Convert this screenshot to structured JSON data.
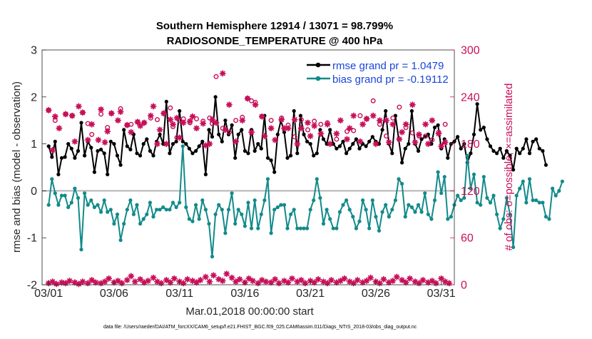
{
  "chart_data": {
    "type": "line",
    "title": "Southern Hemisphere 12914 / 13071 = 98.799%",
    "subtitle": "RADIOSONDE_TEMPERATURE @ 400 hPa",
    "xlabel": "Mar.01,2018 00:00:00 start",
    "ylabel": "rmse and bias (model - observation)",
    "ylabel_right": "# of obs: o=possible; ×=assimilated",
    "footnote": "data file: /Users/raeder/DAI/ATM_forcXX/CAM6_setup/f.e21.FHIST_BGC.f09_025.CAM6assim.011/Diags_NTrS_2018-03/obs_diag_output.nc",
    "xlim": [
      0.5,
      32
    ],
    "ylim": [
      -2,
      3
    ],
    "ylim_right": [
      0,
      300
    ],
    "x_ticks": [
      1,
      6,
      11,
      16,
      21,
      26,
      31
    ],
    "x_tick_labels": [
      "03/01",
      "03/06",
      "03/11",
      "03/16",
      "03/21",
      "03/26",
      "03/31"
    ],
    "y_ticks": [
      -2,
      -1,
      0,
      1,
      2,
      3
    ],
    "y_tick_labels": [
      "-2",
      "-1",
      "0",
      "1",
      "2",
      "3"
    ],
    "y_right_ticks": [
      0,
      60,
      120,
      180,
      240,
      300
    ],
    "y_right_tick_labels": [
      "0",
      "60",
      "120",
      "180",
      "240",
      "300"
    ],
    "zero_line": 0,
    "legend": {
      "position": "top-right",
      "entries": [
        "rmse grand pr = 1.0479",
        "bias grand pr = -0.19112"
      ]
    },
    "colors": {
      "rmse": "#000000",
      "bias": "#138a8a",
      "obs": "#c8105a",
      "legend_text": "#1a46d8",
      "zero_line": "#b4b4b4"
    },
    "series": [
      {
        "name": "rmse",
        "axis": "left",
        "start": 1,
        "step": 0.25,
        "values": [
          0.95,
          0.72,
          1.05,
          0.35,
          0.7,
          0.72,
          1.0,
          0.9,
          0.7,
          0.85,
          1.45,
          0.75,
          1.05,
          0.92,
          0.4,
          0.85,
          0.88,
          0.8,
          0.35,
          1.05,
          1.0,
          0.75,
          0.55,
          1.3,
          0.95,
          0.88,
          1.2,
          0.8,
          0.75,
          1.0,
          1.1,
          0.85,
          0.75,
          1.05,
          1.2,
          1.0,
          1.9,
          0.8,
          1.0,
          1.05,
          1.7,
          1.05,
          1.0,
          0.9,
          0.8,
          0.85,
          0.95,
          1.05,
          0.35,
          1.3,
          1.15,
          2.0,
          1.2,
          1.05,
          1.5,
          1.2,
          1.4,
          0.7,
          1.2,
          1.3,
          0.85,
          0.8,
          1.3,
          0.85,
          1.0,
          0.9,
          1.6,
          0.7,
          0.65,
          0.4,
          1.2,
          1.5,
          1.25,
          0.7,
          0.75,
          1.7,
          0.8,
          1.6,
          1.2,
          1.05,
          1.0,
          0.75,
          0.8,
          1.3,
          1.1,
          1.0,
          1.3,
          1.0,
          0.9,
          0.95,
          1.05,
          0.8,
          0.9,
          1.0,
          1.1,
          0.9,
          1.0,
          0.95,
          1.05,
          1.15,
          1.05,
          1.0,
          1.3,
          1.7,
          1.0,
          0.8,
          1.6,
          1.1,
          0.6,
          0.9,
          1.0,
          1.7,
          1.0,
          0.85,
          1.1,
          1.15,
          1.2,
          1.0,
          1.35,
          1.4,
          0.9,
          1.1,
          0.7,
          1.0,
          1.05,
          1.15,
          0.9,
          1.0,
          0.6,
          0.8,
          1.2,
          1.85,
          1.3,
          1.35,
          1.1,
          0.95,
          0.85,
          0.8,
          0.9,
          0.7,
          0.85,
          0.75,
          0.45,
          0.9,
          0.8,
          0.9,
          1.1,
          0.8,
          1.05,
          1.1,
          0.9,
          0.85,
          0.55
        ]
      },
      {
        "name": "bias",
        "axis": "left",
        "start": 1,
        "step": 0.25,
        "values": [
          -0.3,
          0.25,
          -0.05,
          -0.3,
          -0.1,
          -0.1,
          -0.35,
          -0.25,
          0.05,
          -0.15,
          -1.25,
          -0.05,
          -0.3,
          -0.2,
          -0.35,
          -0.3,
          -0.45,
          -0.2,
          -0.45,
          -0.4,
          -0.7,
          -0.5,
          -1.05,
          -0.7,
          -0.4,
          -0.2,
          -0.5,
          -0.3,
          -0.7,
          -0.6,
          -0.5,
          -0.25,
          -0.55,
          -0.4,
          -0.4,
          -0.35,
          -0.4,
          -0.4,
          -0.25,
          -0.35,
          -0.25,
          0.95,
          -0.35,
          -0.6,
          -0.65,
          -0.3,
          -0.6,
          -0.2,
          -0.4,
          -0.7,
          -1.4,
          -0.5,
          -0.3,
          -0.4,
          -0.9,
          -0.4,
          -0.05,
          -0.7,
          -0.4,
          -0.5,
          -0.75,
          -0.25,
          -0.8,
          -0.2,
          -0.8,
          -0.5,
          -0.2,
          0.25,
          -0.9,
          -0.4,
          -0.35,
          -0.3,
          -0.3,
          -0.8,
          -0.5,
          -0.4,
          -0.8,
          -0.8,
          -0.8,
          -0.8,
          -0.4,
          -0.2,
          0.25,
          -0.15,
          -0.7,
          -0.4,
          -0.6,
          -0.8,
          -0.8,
          -0.45,
          -0.3,
          -0.2,
          -0.4,
          -0.55,
          -0.8,
          -0.65,
          -0.2,
          -0.4,
          -0.8,
          -0.2,
          -0.55,
          -0.85,
          -0.45,
          -0.3,
          -0.55,
          -0.4,
          -0.2,
          0.25,
          0.15,
          -0.55,
          -0.3,
          -0.35,
          -0.45,
          -0.3,
          -0.45,
          -0.05,
          -0.5,
          -0.6,
          -0.2,
          0.4,
          -0.05,
          0.3,
          -0.6,
          -0.55,
          -0.3,
          -0.1,
          -0.2,
          -0.15,
          0.75,
          0.05,
          0.35,
          -0.25,
          -0.3,
          0.3,
          -0.15,
          -0.25,
          -0.1,
          -0.5,
          -0.8,
          -0.6,
          -0.15,
          -0.5,
          -1.2,
          -0.1,
          0.05,
          0.2,
          -0.25,
          0.25,
          -0.2,
          -0.2,
          -0.25,
          -0.25,
          -0.55,
          -0.6,
          0.05,
          -0.1,
          0.0,
          0.2
        ]
      },
      {
        "name": "obs possible",
        "axis": "right",
        "marker": "o",
        "x": [
          1.0,
          1.5,
          2.3,
          2.8,
          3.6,
          4.0,
          4.3,
          5.0,
          5.5,
          5.8,
          6.5,
          7.0,
          7.3,
          7.8,
          8.3,
          8.8,
          9.3,
          9.8,
          10.3,
          10.5,
          10.8,
          11.0,
          11.3,
          11.8,
          12.3,
          12.8,
          13.3,
          13.5,
          13.8,
          14.3,
          14.8,
          15.3,
          15.8,
          16.2,
          16.5,
          16.8,
          17.3,
          18.0,
          18.8,
          19.3,
          19.8,
          20.3,
          20.8,
          21.3,
          21.8,
          22.3,
          23.0,
          23.8,
          24.3,
          24.8,
          25.3,
          25.8,
          26.3,
          26.8,
          27.3,
          27.8,
          28.3,
          28.8,
          29.3,
          29.8,
          30.3,
          30.8,
          31.3
        ],
        "values": [
          223,
          210,
          218,
          216,
          220,
          206,
          192,
          218,
          201,
          219,
          225,
          204,
          205,
          208,
          207,
          213,
          211,
          219,
          226,
          202,
          188,
          210,
          212,
          207,
          212,
          209,
          213,
          206,
          266,
          200,
          195,
          210,
          214,
          238,
          235,
          233,
          215,
          210,
          213,
          204,
          189,
          211,
          198,
          209,
          205,
          207,
          186,
          196,
          197,
          216,
          212,
          235,
          205,
          190,
          213,
          227,
          201,
          194,
          190,
          190,
          185,
          195,
          205
        ]
      },
      {
        "name": "obs assimilated",
        "axis": "right",
        "marker": "*",
        "x": [
          1.0,
          1.3,
          1.5,
          1.8,
          2.3,
          2.8,
          3.0,
          3.3,
          3.6,
          4.0,
          4.3,
          4.8,
          5.0,
          5.3,
          5.5,
          5.8,
          6.3,
          6.5,
          7.0,
          7.3,
          7.8,
          8.0,
          8.3,
          8.8,
          9.0,
          9.3,
          9.5,
          9.8,
          10.0,
          10.3,
          10.5,
          10.8,
          11.0,
          11.3,
          11.8,
          12.0,
          12.3,
          12.8,
          13.0,
          13.3,
          13.5,
          13.8,
          14.3,
          14.5,
          14.8,
          15.3,
          15.8,
          16.2,
          16.5,
          16.8,
          17.3,
          17.5,
          18.0,
          18.3,
          18.8,
          19.0,
          19.3,
          19.8,
          20.0,
          20.3,
          20.8,
          21.0,
          21.3,
          21.8,
          22.3,
          22.5,
          23.0,
          23.3,
          23.8,
          24.0,
          24.3,
          24.8,
          25.0,
          25.3,
          25.8,
          26.0,
          26.3,
          26.8,
          27.0,
          27.3,
          27.8,
          28.0,
          28.3,
          28.8,
          29.0,
          29.3,
          29.8,
          30.0,
          30.3,
          30.8,
          31.0,
          31.3
        ],
        "values": [
          223,
          172,
          215,
          200,
          218,
          216,
          183,
          228,
          220,
          185,
          205,
          185,
          224,
          182,
          196,
          219,
          210,
          221,
          204,
          195,
          208,
          203,
          207,
          216,
          228,
          180,
          198,
          219,
          180,
          211,
          205,
          213,
          188,
          207,
          209,
          215,
          200,
          206,
          178,
          180,
          211,
          207,
          270,
          198,
          230,
          183,
          210,
          238,
          195,
          230,
          215,
          190,
          200,
          185,
          211,
          200,
          200,
          211,
          180,
          200,
          207,
          190,
          203,
          193,
          205,
          180,
          193,
          210,
          186,
          200,
          216,
          183,
          205,
          212,
          216,
          180,
          210,
          210,
          182,
          205,
          186,
          195,
          205,
          230,
          182,
          192,
          205,
          180,
          210,
          193,
          177,
          182
        ],
        "low_x": [
          1.0,
          1.3,
          1.6,
          2.0,
          2.3,
          2.6,
          3.0,
          3.3,
          3.6,
          4.0,
          4.3,
          4.6,
          5.0,
          5.3,
          5.6,
          6.0,
          6.3,
          6.6,
          7.0,
          7.3,
          7.6,
          8.0,
          8.3,
          8.6,
          9.0,
          9.3,
          9.6,
          10.0,
          10.3,
          10.6,
          11.0,
          11.3,
          11.6,
          12.0,
          12.3,
          12.6,
          13.0,
          13.3,
          13.6,
          14.0,
          14.3,
          14.6,
          15.0,
          15.3,
          15.6,
          16.0,
          16.3,
          16.6,
          17.0,
          17.3,
          17.6,
          18.0,
          18.3,
          18.6,
          19.0,
          19.3,
          19.6,
          20.0,
          20.3,
          20.6,
          21.0,
          21.3,
          21.6,
          22.0,
          22.3,
          22.6,
          23.0,
          23.3,
          23.6,
          24.0,
          24.3,
          24.6,
          25.0,
          25.3,
          25.6,
          26.0,
          26.3,
          26.6,
          27.0,
          27.3,
          27.6,
          28.0,
          28.3,
          28.6,
          29.0,
          29.3,
          29.6,
          30.0,
          30.3,
          30.6,
          31.0,
          31.3,
          31.6
        ],
        "low_values": [
          2,
          4,
          1,
          3,
          2,
          5,
          3,
          1,
          4,
          2,
          6,
          3,
          2,
          4,
          8,
          3,
          5,
          2,
          6,
          11,
          4,
          7,
          3,
          5,
          9,
          4,
          2,
          6,
          3,
          8,
          4,
          2,
          7,
          5,
          3,
          6,
          10,
          4,
          12,
          7,
          5,
          14,
          9,
          4,
          7,
          3,
          8,
          5,
          2,
          6,
          4,
          3,
          7,
          2,
          5,
          3,
          8,
          4,
          6,
          2,
          5,
          3,
          7,
          4,
          2,
          6,
          3,
          5,
          8,
          4,
          2,
          6,
          3,
          5,
          9,
          4,
          2,
          7,
          3,
          5,
          10,
          6,
          3,
          8,
          4,
          2,
          6,
          3,
          5,
          2,
          8,
          4,
          2
        ]
      }
    ]
  }
}
